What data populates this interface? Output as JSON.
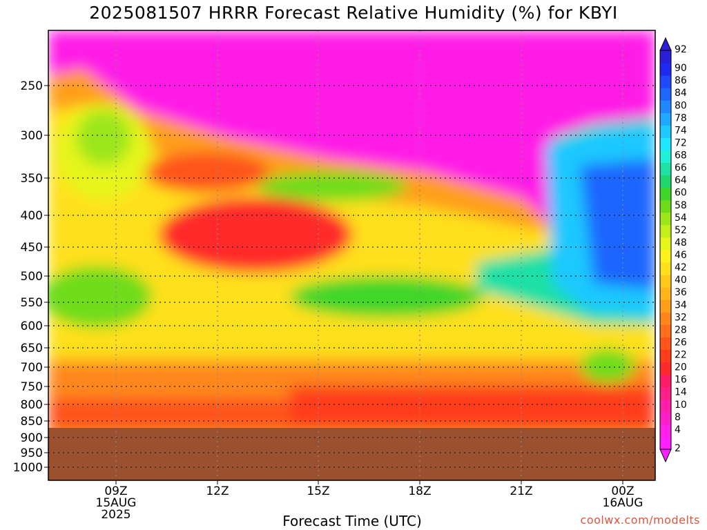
{
  "chart_data": {
    "type": "heatmap",
    "title": "2025081507 HRRR Forecast Relative Humidity (%) for KBYI",
    "xlabel": "Forecast Time (UTC)",
    "ylabel": "",
    "credit": "coolwx.com/modelts",
    "x_ticks": [
      {
        "lines": [
          "09Z",
          "15AUG",
          "2025"
        ]
      },
      {
        "lines": [
          "12Z"
        ]
      },
      {
        "lines": [
          "15Z"
        ]
      },
      {
        "lines": [
          "18Z"
        ]
      },
      {
        "lines": [
          "21Z"
        ]
      },
      {
        "lines": [
          "00Z",
          "16AUG"
        ]
      }
    ],
    "y_ticks": [
      "250",
      "300",
      "350",
      "400",
      "450",
      "500",
      "550",
      "600",
      "650",
      "700",
      "750",
      "800",
      "850",
      "900",
      "950",
      "1000"
    ],
    "y_axis": "pressure (hPa), inverted",
    "ground_level_hpa": 860,
    "ground_color": "#9b5030",
    "colorbar": {
      "levels": [
        2,
        4,
        8,
        10,
        14,
        16,
        20,
        22,
        26,
        28,
        32,
        34,
        36,
        40,
        42,
        46,
        48,
        52,
        54,
        58,
        60,
        64,
        66,
        68,
        72,
        74,
        78,
        80,
        84,
        86,
        90,
        92
      ],
      "colors": [
        "#ff1fff",
        "#ff1fe6",
        "#ff1fc8",
        "#ff1fa8",
        "#ff1f88",
        "#ff1a66",
        "#ff2a2a",
        "#ff3d1a",
        "#ff551a",
        "#ff6e1a",
        "#ff861a",
        "#ff9e1a",
        "#ffb41a",
        "#ffca1a",
        "#ffe01a",
        "#fff21a",
        "#e6f51a",
        "#c3f01a",
        "#9ce61a",
        "#6fdc1a",
        "#3fd62a",
        "#1fd66a",
        "#1fe0a5",
        "#1ff0d8",
        "#1fe6ff",
        "#1fc8ff",
        "#1fa8ff",
        "#1f88ff",
        "#1f66ff",
        "#1f48ff",
        "#1f2af0",
        "#2a1fd6"
      ]
    },
    "notes": "Relative humidity time-height cross section; dry (magenta/red) aloft, moist (cyan/blue) band 300-500 hPa after 22Z, orange/red near surface."
  }
}
